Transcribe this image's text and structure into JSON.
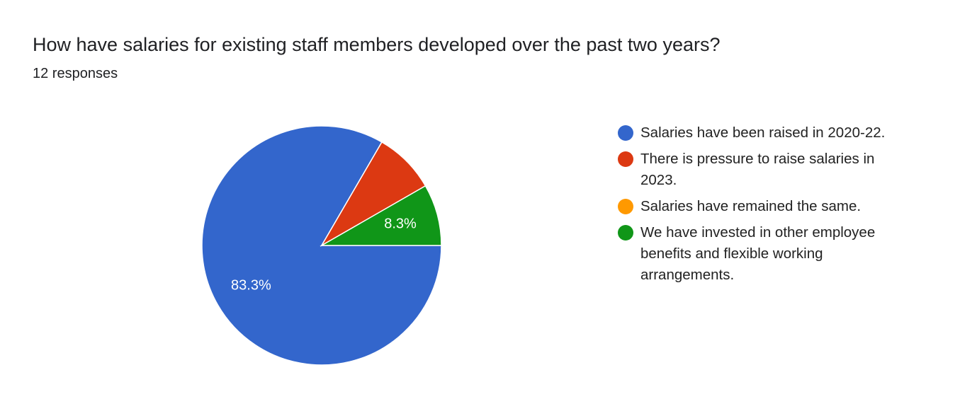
{
  "chart_data": {
    "type": "pie",
    "title": "How have salaries for existing staff members developed over the past two years?",
    "subtitle": "12 responses",
    "categories": [
      "Salaries have been raised in 2020-22.",
      "There is pressure to raise salaries in 2023.",
      "Salaries have remained the same.",
      "We have invested in other employee benefits and flexible working arrangements."
    ],
    "values": [
      83.3,
      8.3,
      0,
      8.3
    ],
    "value_labels": [
      "83.3%",
      null,
      null,
      "8.3%"
    ],
    "colors": [
      "#3366cc",
      "#dc3912",
      "#ff9900",
      "#109618"
    ]
  }
}
